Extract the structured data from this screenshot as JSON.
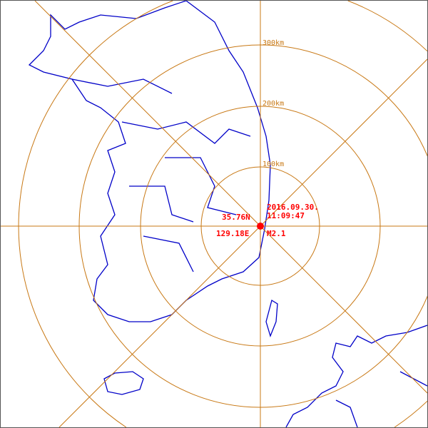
{
  "event": {
    "date": "2016.09.30.",
    "time": "11:09:47",
    "latitude": "35.76N",
    "longitude": "129.18E",
    "magnitude": "M2.1",
    "marker_color": "#ff0000"
  },
  "rings": [
    "100km",
    "200km",
    "300km"
  ],
  "colors": {
    "rings": "#c87814",
    "coastline": "#0000c8",
    "labels": "#ff0000"
  }
}
